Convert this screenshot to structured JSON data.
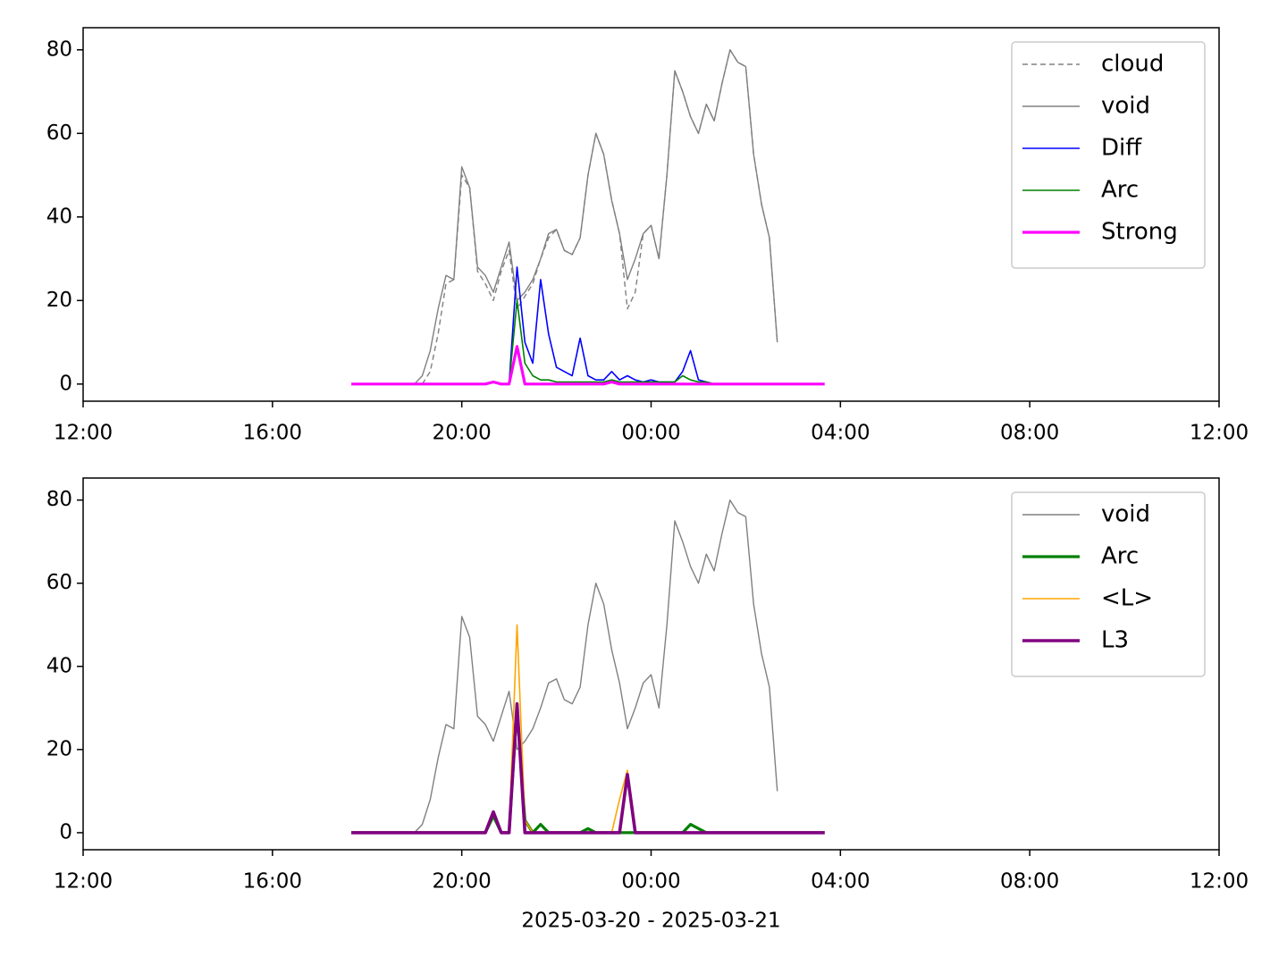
{
  "chart_data": [
    {
      "type": "line",
      "x": [
        "2025-03-20T17:40",
        "2025-03-20T17:50",
        "2025-03-20T18:00",
        "2025-03-20T18:10",
        "2025-03-20T18:20",
        "2025-03-20T18:30",
        "2025-03-20T18:40",
        "2025-03-20T18:50",
        "2025-03-20T19:00",
        "2025-03-20T19:10",
        "2025-03-20T19:20",
        "2025-03-20T19:30",
        "2025-03-20T19:40",
        "2025-03-20T19:50",
        "2025-03-20T20:00",
        "2025-03-20T20:10",
        "2025-03-20T20:20",
        "2025-03-20T20:30",
        "2025-03-20T20:40",
        "2025-03-20T20:50",
        "2025-03-20T21:00",
        "2025-03-20T21:10",
        "2025-03-20T21:20",
        "2025-03-20T21:30",
        "2025-03-20T21:40",
        "2025-03-20T21:50",
        "2025-03-20T22:00",
        "2025-03-20T22:10",
        "2025-03-20T22:20",
        "2025-03-20T22:30",
        "2025-03-20T22:40",
        "2025-03-20T22:50",
        "2025-03-20T23:00",
        "2025-03-20T23:10",
        "2025-03-20T23:20",
        "2025-03-20T23:30",
        "2025-03-20T23:40",
        "2025-03-20T23:50",
        "2025-03-21T00:00",
        "2025-03-21T00:10",
        "2025-03-21T00:20",
        "2025-03-21T00:30",
        "2025-03-21T00:40",
        "2025-03-21T00:50",
        "2025-03-21T01:00",
        "2025-03-21T01:10",
        "2025-03-21T01:20",
        "2025-03-21T01:30",
        "2025-03-21T01:40",
        "2025-03-21T01:50",
        "2025-03-21T02:00",
        "2025-03-21T02:10",
        "2025-03-21T02:20",
        "2025-03-21T02:30",
        "2025-03-21T02:40",
        "2025-03-21T02:50",
        "2025-03-21T03:00",
        "2025-03-21T03:10",
        "2025-03-21T03:20",
        "2025-03-21T03:30",
        "2025-03-21T03:40"
      ],
      "xlim": [
        "2025-03-20T12:00",
        "2025-03-21T12:00"
      ],
      "xticks": [
        {
          "value": "2025-03-20T12:00",
          "label": "12:00"
        },
        {
          "value": "2025-03-20T16:00",
          "label": "16:00"
        },
        {
          "value": "2025-03-20T20:00",
          "label": "20:00"
        },
        {
          "value": "2025-03-21T00:00",
          "label": "00:00"
        },
        {
          "value": "2025-03-21T04:00",
          "label": "04:00"
        },
        {
          "value": "2025-03-21T08:00",
          "label": "08:00"
        },
        {
          "value": "2025-03-21T12:00",
          "label": "12:00"
        }
      ],
      "ylim": [
        -4.1,
        85.3
      ],
      "yticks": [
        0,
        20,
        40,
        60,
        80
      ],
      "legend": "upper right",
      "series": [
        {
          "name": "cloud",
          "color": "#808080",
          "linewidth": 1.4,
          "dashed": true,
          "values": [
            null,
            null,
            null,
            null,
            null,
            null,
            null,
            null,
            null,
            0,
            3,
            12,
            24,
            25,
            50,
            47,
            27,
            24,
            20,
            27,
            32,
            18,
            21,
            24,
            30,
            35,
            37,
            32,
            31,
            35,
            50,
            60,
            55,
            44,
            36,
            18,
            22,
            36,
            38,
            30,
            50,
            75,
            70,
            64,
            60,
            67,
            63,
            72,
            80,
            77,
            76,
            55,
            43,
            35,
            10,
            null,
            null,
            null,
            null,
            null,
            null
          ]
        },
        {
          "name": "void",
          "color": "#808080",
          "linewidth": 1.4,
          "values": [
            null,
            null,
            null,
            null,
            null,
            null,
            null,
            null,
            0,
            2,
            8,
            18,
            26,
            25,
            52,
            47,
            28,
            26,
            22,
            28,
            34,
            20,
            22,
            25,
            30,
            36,
            37,
            32,
            31,
            35,
            50,
            60,
            55,
            44,
            36,
            25,
            30,
            36,
            38,
            30,
            50,
            75,
            70,
            64,
            60,
            67,
            63,
            72,
            80,
            77,
            76,
            55,
            43,
            35,
            10,
            null,
            null,
            null,
            null,
            null,
            null
          ]
        },
        {
          "name": "Diff",
          "color": "#0000ff",
          "linewidth": 1.6,
          "values": [
            null,
            null,
            null,
            null,
            null,
            null,
            null,
            null,
            null,
            null,
            null,
            null,
            null,
            null,
            null,
            null,
            null,
            null,
            null,
            null,
            0,
            28,
            10,
            5,
            25,
            12,
            4,
            3,
            2,
            11,
            2,
            1,
            1,
            3,
            1,
            2,
            1,
            0.5,
            1,
            0.5,
            0.5,
            0.5,
            3,
            8,
            1,
            0.5,
            0,
            null,
            null,
            null,
            null,
            null,
            null,
            null,
            null,
            null,
            null,
            null,
            null,
            null,
            null
          ]
        },
        {
          "name": "Arc",
          "color": "#008000",
          "linewidth": 1.6,
          "values": [
            null,
            null,
            null,
            null,
            null,
            null,
            null,
            null,
            null,
            null,
            null,
            null,
            null,
            null,
            null,
            null,
            null,
            null,
            null,
            null,
            0,
            20,
            5,
            2,
            1,
            1,
            0.5,
            0.5,
            0.5,
            0.5,
            0.5,
            0.5,
            0.5,
            1,
            0.5,
            0.5,
            0.5,
            0.5,
            0.5,
            0.5,
            0.5,
            0.5,
            2,
            1,
            0.5,
            0.5,
            0,
            null,
            null,
            null,
            null,
            null,
            null,
            null,
            null,
            null,
            null,
            null,
            null,
            null,
            null
          ]
        },
        {
          "name": "Strong",
          "color": "#ff00ff",
          "linewidth": 3.2,
          "values": [
            0,
            0,
            0,
            0,
            0,
            0,
            0,
            0,
            0,
            0,
            0,
            0,
            0,
            0,
            0,
            0,
            0,
            0,
            0.5,
            0,
            0,
            9,
            0,
            0,
            0,
            0,
            0,
            0,
            0,
            0,
            0,
            0,
            0,
            0.5,
            0,
            0,
            0,
            0,
            0,
            0,
            0,
            0,
            0,
            0,
            0,
            0,
            0,
            0,
            0,
            0,
            0,
            0,
            0,
            0,
            0,
            0,
            0,
            0,
            0,
            0,
            0
          ]
        }
      ]
    },
    {
      "type": "line",
      "x": [
        "2025-03-20T17:40",
        "2025-03-20T17:50",
        "2025-03-20T18:00",
        "2025-03-20T18:10",
        "2025-03-20T18:20",
        "2025-03-20T18:30",
        "2025-03-20T18:40",
        "2025-03-20T18:50",
        "2025-03-20T19:00",
        "2025-03-20T19:10",
        "2025-03-20T19:20",
        "2025-03-20T19:30",
        "2025-03-20T19:40",
        "2025-03-20T19:50",
        "2025-03-20T20:00",
        "2025-03-20T20:10",
        "2025-03-20T20:20",
        "2025-03-20T20:30",
        "2025-03-20T20:40",
        "2025-03-20T20:50",
        "2025-03-20T21:00",
        "2025-03-20T21:10",
        "2025-03-20T21:20",
        "2025-03-20T21:30",
        "2025-03-20T21:40",
        "2025-03-20T21:50",
        "2025-03-20T22:00",
        "2025-03-20T22:10",
        "2025-03-20T22:20",
        "2025-03-20T22:30",
        "2025-03-20T22:40",
        "2025-03-20T22:50",
        "2025-03-20T23:00",
        "2025-03-20T23:10",
        "2025-03-20T23:20",
        "2025-03-20T23:30",
        "2025-03-20T23:40",
        "2025-03-20T23:50",
        "2025-03-21T00:00",
        "2025-03-21T00:10",
        "2025-03-21T00:20",
        "2025-03-21T00:30",
        "2025-03-21T00:40",
        "2025-03-21T00:50",
        "2025-03-21T01:00",
        "2025-03-21T01:10",
        "2025-03-21T01:20",
        "2025-03-21T01:30",
        "2025-03-21T01:40",
        "2025-03-21T01:50",
        "2025-03-21T02:00",
        "2025-03-21T02:10",
        "2025-03-21T02:20",
        "2025-03-21T02:30",
        "2025-03-21T02:40",
        "2025-03-21T02:50",
        "2025-03-21T03:00",
        "2025-03-21T03:10",
        "2025-03-21T03:20",
        "2025-03-21T03:30",
        "2025-03-21T03:40"
      ],
      "xlim": [
        "2025-03-20T12:00",
        "2025-03-21T12:00"
      ],
      "xticks": [
        {
          "value": "2025-03-20T12:00",
          "label": "12:00"
        },
        {
          "value": "2025-03-20T16:00",
          "label": "16:00"
        },
        {
          "value": "2025-03-20T20:00",
          "label": "20:00"
        },
        {
          "value": "2025-03-21T00:00",
          "label": "00:00"
        },
        {
          "value": "2025-03-21T04:00",
          "label": "04:00"
        },
        {
          "value": "2025-03-21T08:00",
          "label": "08:00"
        },
        {
          "value": "2025-03-21T12:00",
          "label": "12:00"
        }
      ],
      "xlabel": "2025-03-20 - 2025-03-21",
      "ylim": [
        -4.1,
        85.3
      ],
      "yticks": [
        0,
        20,
        40,
        60,
        80
      ],
      "legend": "upper right",
      "series": [
        {
          "name": "void",
          "color": "#808080",
          "linewidth": 1.4,
          "values": [
            null,
            null,
            null,
            null,
            null,
            null,
            null,
            null,
            0,
            2,
            8,
            18,
            26,
            25,
            52,
            47,
            28,
            26,
            22,
            28,
            34,
            20,
            22,
            25,
            30,
            36,
            37,
            32,
            31,
            35,
            50,
            60,
            55,
            44,
            36,
            25,
            30,
            36,
            38,
            30,
            50,
            75,
            70,
            64,
            60,
            67,
            63,
            72,
            80,
            77,
            76,
            55,
            43,
            35,
            10,
            null,
            null,
            null,
            null,
            null,
            null
          ]
        },
        {
          "name": "Arc",
          "color": "#008000",
          "linewidth": 3.2,
          "values": [
            0,
            0,
            0,
            0,
            0,
            0,
            0,
            0,
            0,
            0,
            0,
            0,
            0,
            0,
            0,
            0,
            0,
            0,
            4,
            0,
            0,
            30,
            3,
            0,
            2,
            0,
            0,
            0,
            0,
            0,
            1,
            0,
            0,
            0,
            0,
            0,
            0,
            0,
            0,
            0,
            0,
            0,
            0,
            2,
            1,
            0,
            0,
            0,
            0,
            0,
            0,
            0,
            0,
            0,
            0,
            0,
            0,
            0,
            0,
            0,
            0
          ]
        },
        {
          "name": "<L>",
          "color": "#ffa500",
          "linewidth": 1.6,
          "values": [
            0,
            0,
            0,
            0,
            0,
            0,
            0,
            0,
            0,
            0,
            0,
            0,
            0,
            0,
            0,
            0,
            0,
            0,
            5,
            0,
            0,
            50,
            3,
            0,
            0,
            0,
            0,
            0,
            0,
            0,
            0,
            0,
            0,
            0,
            8,
            15,
            0,
            0,
            0,
            0,
            0,
            0,
            0,
            0,
            0,
            0,
            0,
            0,
            0,
            0,
            0,
            0,
            0,
            0,
            0,
            0,
            0,
            0,
            0,
            0,
            0
          ]
        },
        {
          "name": "L3",
          "color": "#800080",
          "linewidth": 3.6,
          "values": [
            0,
            0,
            0,
            0,
            0,
            0,
            0,
            0,
            0,
            0,
            0,
            0,
            0,
            0,
            0,
            0,
            0,
            0,
            5,
            0,
            0,
            31,
            0,
            0,
            0,
            0,
            0,
            0,
            0,
            0,
            0,
            0,
            0,
            0,
            0,
            14,
            0,
            0,
            0,
            0,
            0,
            0,
            0,
            0,
            0,
            0,
            0,
            0,
            0,
            0,
            0,
            0,
            0,
            0,
            0,
            0,
            0,
            0,
            0,
            0,
            0
          ]
        }
      ]
    }
  ]
}
